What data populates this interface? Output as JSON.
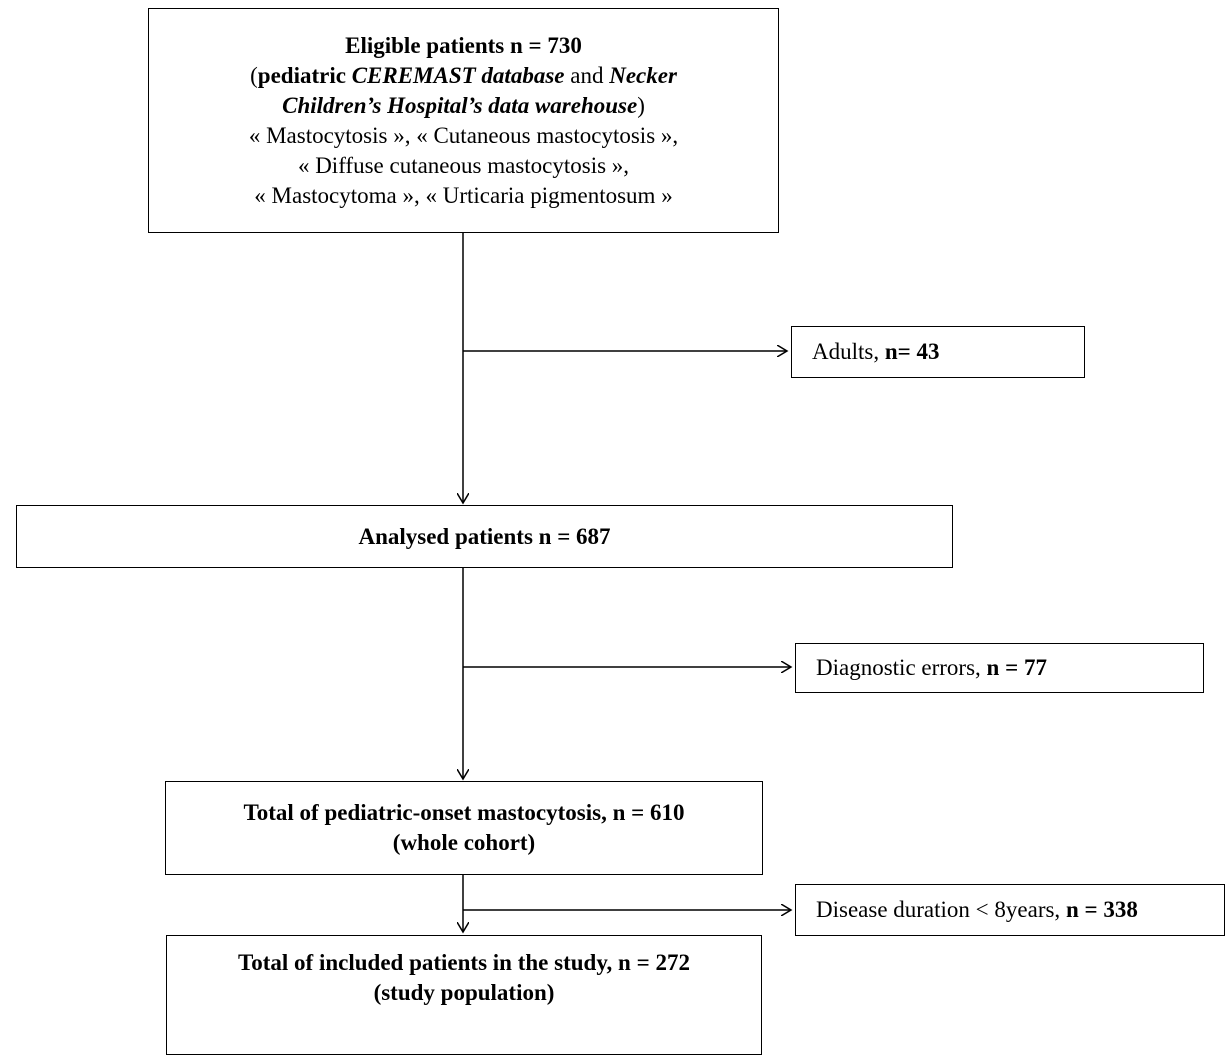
{
  "box_eligible": {
    "line1": "Eligible patients n = 730",
    "l2_open": "(",
    "l2_bold": "pediatric ",
    "l2_bolditalic": "CEREMAST database",
    "l2_and": " and ",
    "l2_bolditalic2": "Necker",
    "line3": "Children’s Hospital’s data warehouse",
    "line3_close": ")",
    "line4": "« Mastocytosis », « Cutaneous mastocytosis »,",
    "line5": "« Diffuse cutaneous mastocytosis »,",
    "line6": "« Mastocytoma », « Urticaria pigmentosum »"
  },
  "box_adults": {
    "label": "Adults, ",
    "count": "n= 43"
  },
  "box_analysed": {
    "label": "Analysed patients n = 687"
  },
  "box_errors": {
    "label": "Diagnostic errors, ",
    "count": "n =  77"
  },
  "box_total": {
    "line1": "Total of pediatric-onset mastocytosis, n = 610",
    "line2": "(whole cohort)"
  },
  "box_duration": {
    "label": "Disease duration < 8years, ",
    "count": "n =  338"
  },
  "box_included": {
    "line1": "Total of included patients in the study, n = 272",
    "line2": "(study population)"
  }
}
